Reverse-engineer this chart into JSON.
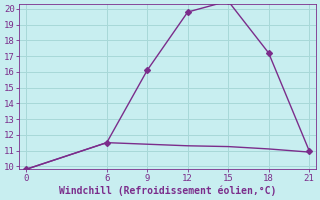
{
  "xlabel": "Windchill (Refroidissement éolien,°C)",
  "background_color": "#c8eef0",
  "line_color": "#7b2d8b",
  "grid_color": "#a8d8d8",
  "line1_x": [
    0,
    6,
    9,
    12,
    15,
    18,
    21
  ],
  "line1_y": [
    9.8,
    11.5,
    16.1,
    19.8,
    20.5,
    17.2,
    11.0
  ],
  "line2_x": [
    0,
    6,
    9,
    12,
    15,
    18,
    21
  ],
  "line2_y": [
    9.8,
    11.5,
    11.4,
    11.3,
    11.25,
    11.1,
    10.9
  ],
  "xlim": [
    -0.5,
    21.5
  ],
  "ylim": [
    9.8,
    20.3
  ],
  "xticks": [
    0,
    6,
    9,
    12,
    15,
    18,
    21
  ],
  "yticks": [
    10,
    11,
    12,
    13,
    14,
    15,
    16,
    17,
    18,
    19,
    20
  ],
  "marker": "D",
  "marker_size": 3,
  "linewidth": 1.0,
  "xlabel_fontsize": 7,
  "tick_fontsize": 6.5
}
